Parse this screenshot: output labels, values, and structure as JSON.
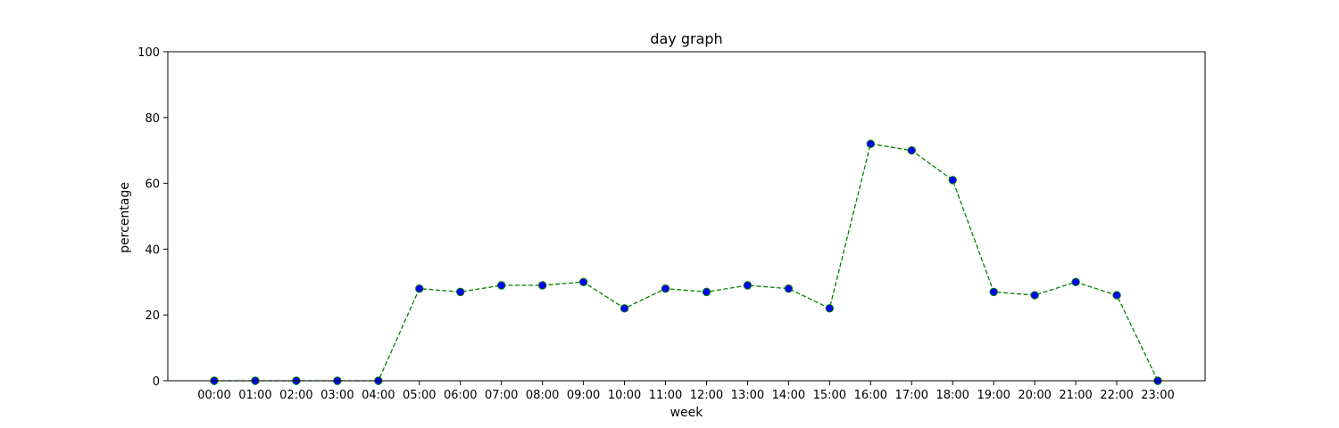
{
  "chart_data": {
    "type": "line",
    "title": "day graph",
    "xlabel": "week",
    "ylabel": "percentage",
    "ylim": [
      0,
      100
    ],
    "yticks": [
      0,
      20,
      40,
      60,
      80,
      100
    ],
    "grid": false,
    "categories": [
      "00:00",
      "01:00",
      "02:00",
      "03:00",
      "04:00",
      "05:00",
      "06:00",
      "07:00",
      "08:00",
      "09:00",
      "10:00",
      "11:00",
      "12:00",
      "13:00",
      "14:00",
      "15:00",
      "16:00",
      "17:00",
      "18:00",
      "19:00",
      "20:00",
      "21:00",
      "22:00",
      "23:00"
    ],
    "series": [
      {
        "values": [
          0,
          0,
          0,
          0,
          0,
          28,
          27,
          29,
          29,
          30,
          22,
          28,
          27,
          29,
          28,
          22,
          72,
          70,
          61,
          27,
          26,
          30,
          26,
          0
        ],
        "line_color": "#008000",
        "line_style": "dashed",
        "marker": "circle",
        "marker_fill": "#0000ff",
        "marker_edge": "#008000"
      }
    ]
  }
}
